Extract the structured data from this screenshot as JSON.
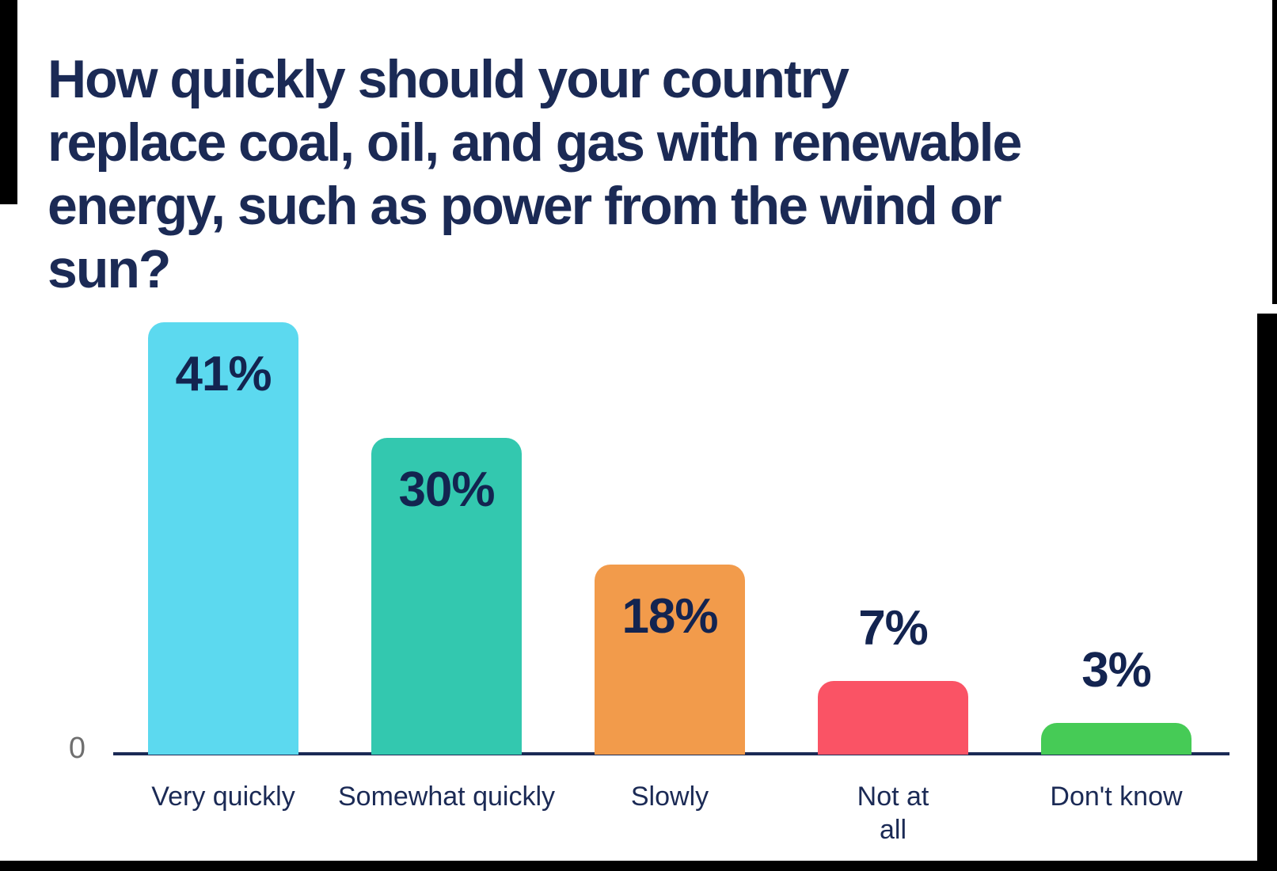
{
  "frame": {
    "background": "#ffffff",
    "edge_color": "#000000"
  },
  "title": {
    "text": "How quickly should your country replace coal, oil, and gas with renewable energy, such as power from the wind or sun?",
    "lines": [
      "How quickly should your country",
      "replace coal, oil, and gas with renewable",
      "energy, such as power from the wind or",
      "sun?"
    ],
    "color": "#1b2a55"
  },
  "chart_data": {
    "type": "bar",
    "title": "How quickly should your country replace coal, oil, and gas with renewable energy, such as power from the wind or sun?",
    "categories": [
      "Very quickly",
      "Somewhat quickly",
      "Slowly",
      "Not at all",
      "Don't know"
    ],
    "values": [
      41,
      30,
      18,
      7,
      3
    ],
    "unit": "%",
    "xlabel": "",
    "ylabel": "",
    "ylim": [
      0,
      45
    ],
    "grid": false,
    "legend_position": "none",
    "zero_label": "0",
    "zero_label_color": "#6f6f6f",
    "axis_color": "#1b2a55",
    "tick_label_color": "#1b2a55",
    "value_label_color": "#132450",
    "points": [
      {
        "category": "Very quickly",
        "tick_label": "Very quickly",
        "value": 41,
        "label": "41%",
        "color": "#5cd9ef",
        "label_position": "inside"
      },
      {
        "category": "Somewhat quickly",
        "tick_label": "Somewhat quickly",
        "value": 30,
        "label": "30%",
        "color": "#33c8af",
        "label_position": "inside"
      },
      {
        "category": "Slowly",
        "tick_label": "Slowly",
        "value": 18,
        "label": "18%",
        "color": "#f29b4b",
        "label_position": "inside"
      },
      {
        "category": "Not at all",
        "tick_label": "Not at\nall",
        "value": 7,
        "label": "7%",
        "color": "#fa5365",
        "label_position": "above"
      },
      {
        "category": "Don't know",
        "tick_label": "Don't know",
        "value": 3,
        "label": "3%",
        "color": "#46cb56",
        "label_position": "above"
      }
    ]
  }
}
